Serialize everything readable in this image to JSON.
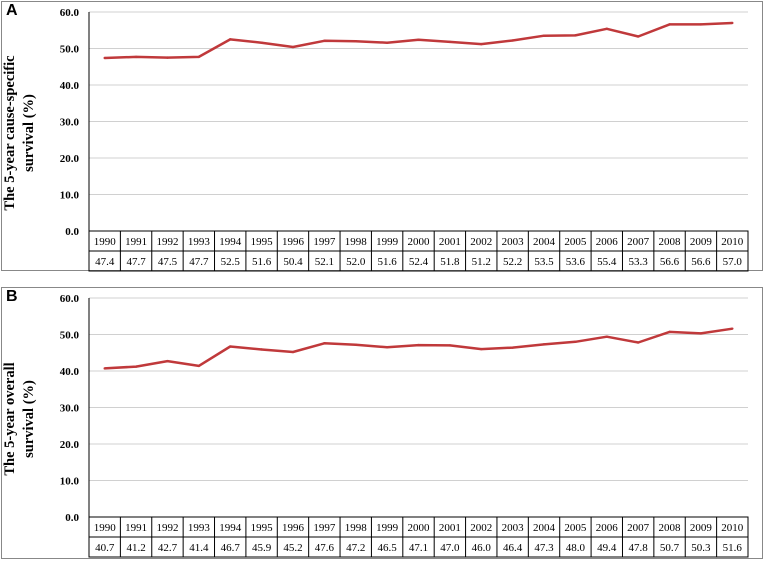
{
  "chart_data": [
    {
      "panel_label": "A",
      "type": "line",
      "ylabel_lines": [
        "The 5-year cause-specific",
        "survival (%)"
      ],
      "ylim": [
        0,
        60
      ],
      "yticks": [
        "0.0",
        "10.0",
        "20.0",
        "30.0",
        "40.0",
        "50.0",
        "60.0"
      ],
      "grid": true,
      "line_color": "#C0393B",
      "categories": [
        "1990",
        "1991",
        "1992",
        "1993",
        "1994",
        "1995",
        "1996",
        "1997",
        "1998",
        "1999",
        "2000",
        "2001",
        "2002",
        "2003",
        "2004",
        "2005",
        "2006",
        "2007",
        "2008",
        "2009",
        "2010"
      ],
      "values": [
        47.4,
        47.7,
        47.5,
        47.7,
        52.5,
        51.6,
        50.4,
        52.1,
        52.0,
        51.6,
        52.4,
        51.8,
        51.2,
        52.2,
        53.5,
        53.6,
        55.4,
        53.3,
        56.6,
        56.6,
        57.0
      ],
      "value_labels": [
        "47.4",
        "47.7",
        "47.5",
        "47.7",
        "52.5",
        "51.6",
        "50.4",
        "52.1",
        "52.0",
        "51.6",
        "52.4",
        "51.8",
        "51.2",
        "52.2",
        "53.5",
        "53.6",
        "55.4",
        "53.3",
        "56.6",
        "56.6",
        "57.0"
      ]
    },
    {
      "panel_label": "B",
      "type": "line",
      "ylabel_lines": [
        "The 5-year overall",
        "survival (%)"
      ],
      "ylim": [
        0,
        60
      ],
      "yticks": [
        "0.0",
        "10.0",
        "20.0",
        "30.0",
        "40.0",
        "50.0",
        "60.0"
      ],
      "grid": true,
      "line_color": "#C0393B",
      "categories": [
        "1990",
        "1991",
        "1992",
        "1993",
        "1994",
        "1995",
        "1996",
        "1997",
        "1998",
        "1999",
        "2000",
        "2001",
        "2002",
        "2003",
        "2004",
        "2005",
        "2006",
        "2007",
        "2008",
        "2009",
        "2010"
      ],
      "values": [
        40.7,
        41.2,
        42.7,
        41.4,
        46.7,
        45.9,
        45.2,
        47.6,
        47.2,
        46.5,
        47.1,
        47.0,
        46.0,
        46.4,
        47.3,
        48.0,
        49.4,
        47.8,
        50.7,
        50.3,
        51.6
      ],
      "value_labels": [
        "40.7",
        "41.2",
        "42.7",
        "41.4",
        "46.7",
        "45.9",
        "45.2",
        "47.6",
        "47.2",
        "46.5",
        "47.1",
        "47.0",
        "46.0",
        "46.4",
        "47.3",
        "48.0",
        "49.4",
        "47.8",
        "50.7",
        "50.3",
        "51.6"
      ]
    }
  ]
}
